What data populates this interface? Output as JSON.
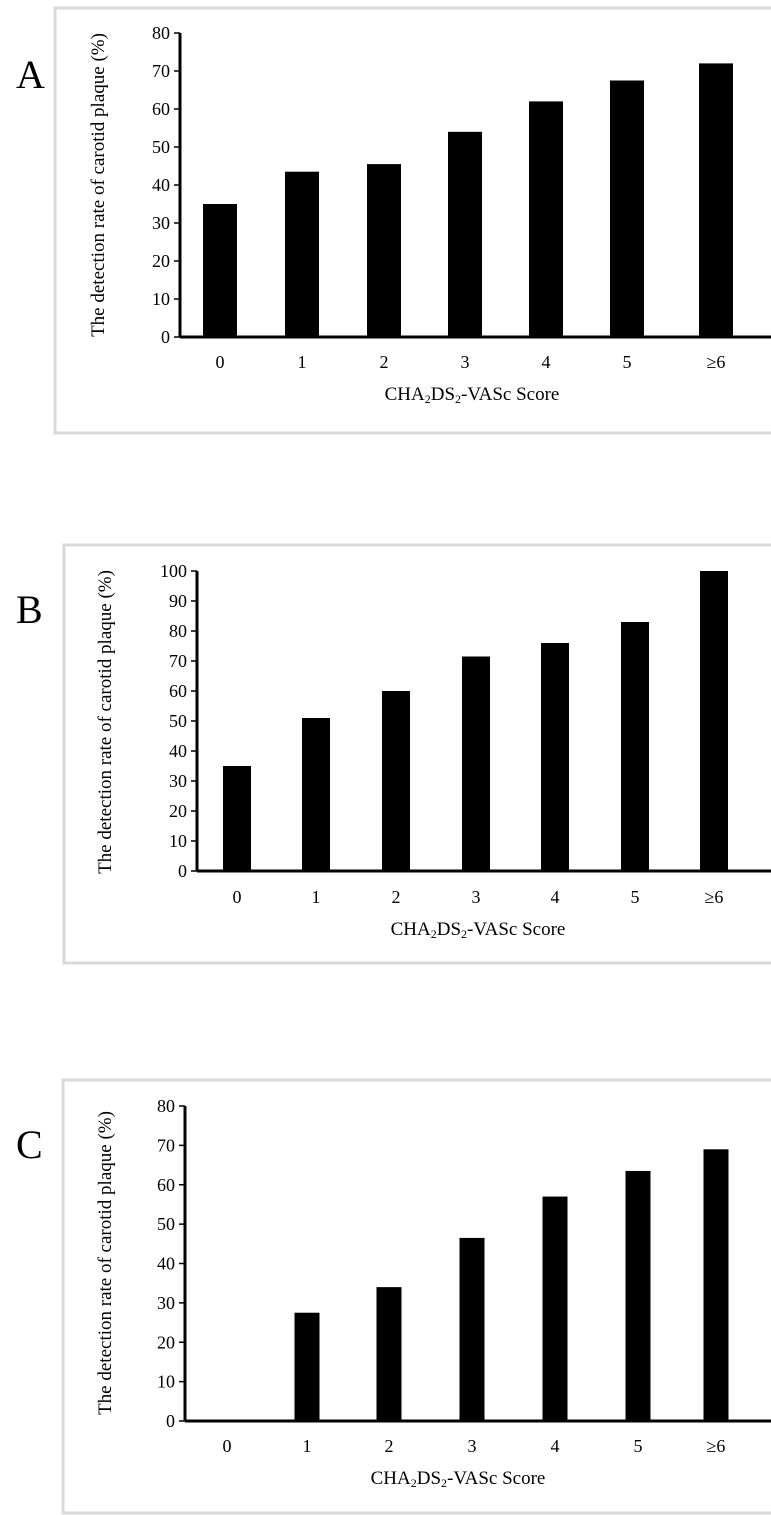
{
  "chart_data": [
    {
      "panel": "A",
      "type": "bar",
      "categories": [
        "0",
        "1",
        "2",
        "3",
        "4",
        "5",
        "≥6"
      ],
      "values": [
        35,
        43.5,
        45.5,
        54,
        62,
        67.5,
        72
      ],
      "ylabel": "The detection rate of carotid plaque (%)",
      "xlabel_parts": [
        "CHA",
        "2",
        "DS",
        "2",
        "-VASc Score"
      ],
      "yticks": [
        0,
        10,
        20,
        30,
        40,
        50,
        60,
        70,
        80
      ],
      "ylim": [
        0,
        80
      ],
      "grid": false,
      "legend": "none"
    },
    {
      "panel": "B",
      "type": "bar",
      "categories": [
        "0",
        "1",
        "2",
        "3",
        "4",
        "5",
        "≥6"
      ],
      "values": [
        35,
        51,
        60,
        71.5,
        76,
        83,
        100
      ],
      "ylabel": "The detection rate of carotid plaque (%)",
      "xlabel_parts": [
        "CHA",
        "2",
        "DS",
        "2",
        "-VASc Score"
      ],
      "yticks": [
        0,
        10,
        20,
        30,
        40,
        50,
        60,
        70,
        80,
        90,
        100
      ],
      "ylim": [
        0,
        100
      ],
      "grid": false,
      "legend": "none"
    },
    {
      "panel": "C",
      "type": "bar",
      "categories": [
        "0",
        "1",
        "2",
        "3",
        "4",
        "5",
        "≥6"
      ],
      "values": [
        0,
        27.5,
        34,
        46.5,
        57,
        63.5,
        69
      ],
      "ylabel": "The detection rate of carotid plaque (%)",
      "xlabel_parts": [
        "CHA",
        "2",
        "DS",
        "2",
        "-VASc Score"
      ],
      "yticks": [
        0,
        10,
        20,
        30,
        40,
        50,
        60,
        70,
        80
      ],
      "ylim": [
        0,
        80
      ],
      "grid": false,
      "legend": "none"
    }
  ],
  "colors": {
    "bar": "#000000",
    "frame": "#d9d9d9"
  }
}
